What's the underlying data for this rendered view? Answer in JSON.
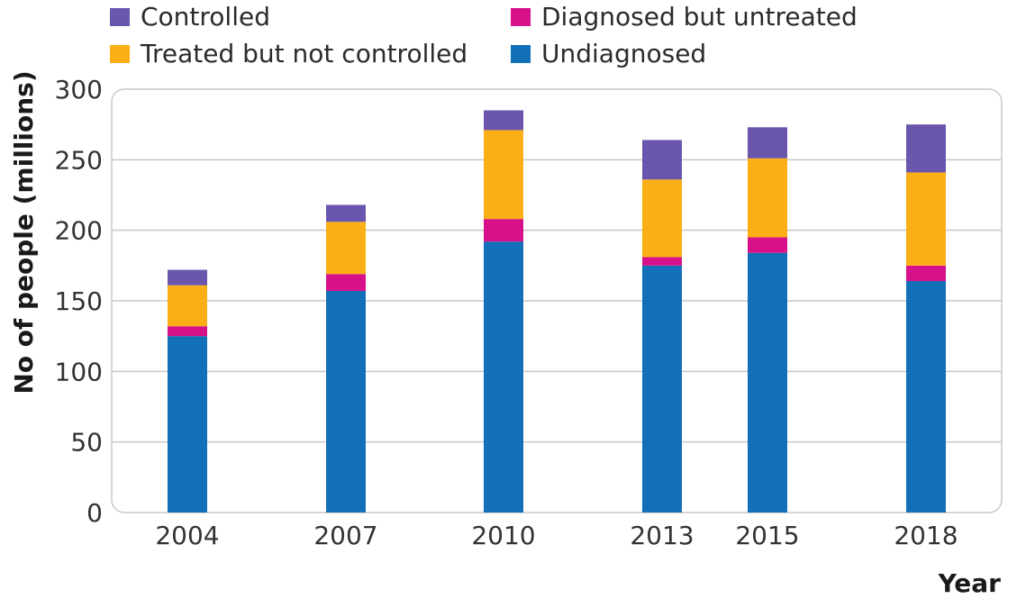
{
  "chart_data": {
    "type": "bar",
    "stacked": true,
    "categories": [
      "2004",
      "2007",
      "2010",
      "2013",
      "2015",
      "2018"
    ],
    "series": [
      {
        "name": "Undiagnosed",
        "color": "#1170b8",
        "values": [
          125,
          157,
          192,
          175,
          184,
          164
        ]
      },
      {
        "name": "Diagnosed but untreated",
        "color": "#d6118a",
        "values": [
          7,
          12,
          16,
          6,
          11,
          11
        ]
      },
      {
        "name": "Treated but not controlled",
        "color": "#fbaf16",
        "values": [
          29,
          37,
          63,
          55,
          56,
          66
        ]
      },
      {
        "name": "Controlled",
        "color": "#6b56ad",
        "values": [
          11,
          12,
          14,
          28,
          22,
          34
        ]
      }
    ],
    "title": "",
    "xlabel": "Year",
    "ylabel": "No of people (millions)",
    "ylim": [
      0,
      300
    ],
    "yticks": [
      "0",
      "50",
      "100",
      "150",
      "200",
      "250",
      "300"
    ],
    "grid": true,
    "legend_position": "top"
  }
}
